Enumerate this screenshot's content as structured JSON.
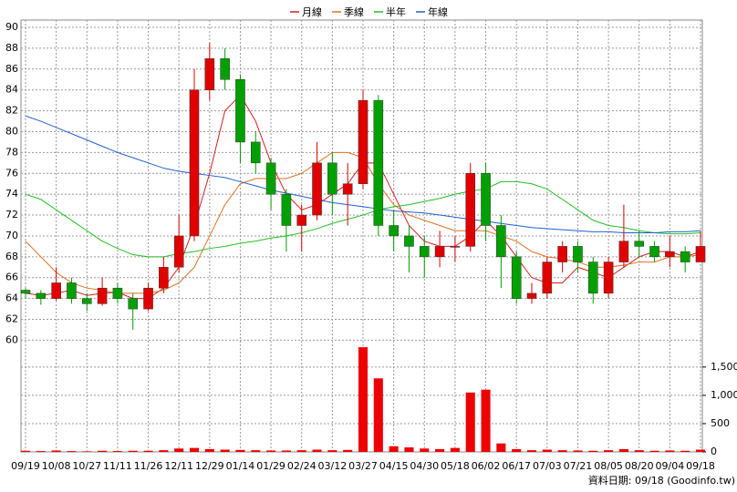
{
  "chart_data": {
    "type": "candlestick",
    "categories": [
      "09/19",
      null,
      "10/08",
      null,
      "10/27",
      null,
      "11/11",
      null,
      "11/26",
      null,
      "12/11",
      null,
      "12/29",
      null,
      "01/14",
      null,
      "01/29",
      null,
      "02/24",
      null,
      "03/12",
      null,
      "03/27",
      null,
      "04/15",
      null,
      "04/30",
      null,
      "05/18",
      null,
      "06/02",
      null,
      "06/17",
      null,
      "07/03",
      null,
      "07/21",
      null,
      "08/05",
      null,
      "08/20",
      null,
      "09/04",
      null,
      "09/18"
    ],
    "open": [
      64.8,
      64.5,
      64,
      65.5,
      64,
      63.5,
      65,
      64,
      63,
      65,
      67,
      70,
      84,
      87,
      85,
      79,
      77,
      74,
      71,
      72,
      77,
      74,
      75,
      83,
      71,
      70,
      69,
      68,
      69,
      69,
      76,
      71,
      68,
      64,
      64.5,
      67.5,
      69,
      67.5,
      64.5,
      67.5,
      69.5,
      69,
      68,
      68.5,
      67.5
    ],
    "high": [
      65,
      64.8,
      67,
      66,
      64.5,
      66,
      65.5,
      64.5,
      65.5,
      68,
      72,
      86,
      88.5,
      88,
      85.5,
      80,
      77.5,
      74.5,
      73,
      79,
      78,
      77,
      84,
      83.5,
      72.5,
      71,
      70,
      70.5,
      70,
      77,
      77,
      72,
      68.5,
      65.5,
      68,
      69.5,
      69.5,
      68,
      68,
      73,
      70.5,
      69.5,
      70,
      69,
      70.5
    ],
    "low": [
      64,
      63.4,
      63.8,
      63.5,
      62.8,
      63.3,
      63.5,
      61,
      62.8,
      64.5,
      66.5,
      69.5,
      83,
      84,
      77,
      76,
      72.5,
      68.5,
      68.5,
      71.5,
      72,
      71,
      74.5,
      70,
      68.5,
      66.5,
      66,
      67,
      67.5,
      68.5,
      69.5,
      65,
      63.5,
      63.5,
      64,
      66.5,
      66.5,
      63.5,
      64,
      67,
      68,
      67.5,
      67,
      66.5,
      67.5
    ],
    "close": [
      64.5,
      64,
      65.5,
      64,
      63.5,
      65,
      64,
      63,
      65,
      67,
      70,
      84,
      87,
      85,
      79,
      77,
      74,
      71,
      72,
      77,
      74,
      75,
      83,
      71,
      70,
      69,
      68,
      69,
      69,
      76,
      71,
      68,
      64,
      64.5,
      67.5,
      69,
      67.5,
      64.5,
      67.5,
      69.5,
      69,
      68,
      68.5,
      67.5,
      69
    ],
    "up_color": "#e00000",
    "down_color": "#00a000",
    "series": [
      {
        "name": "月線",
        "color": "#d42020",
        "values": [
          64.5,
          64.3,
          64.5,
          64.8,
          64.3,
          64.5,
          64.6,
          64,
          64,
          65,
          67,
          71,
          76,
          82,
          83.5,
          81,
          77,
          74,
          72.5,
          73,
          74,
          75,
          77,
          77,
          74,
          71,
          69.5,
          69,
          69,
          70,
          71.5,
          70,
          68,
          66,
          65.5,
          65.5,
          67,
          66.5,
          66,
          67,
          68,
          68.5,
          68.5,
          68,
          68.5
        ]
      },
      {
        "name": "季線",
        "color": "#e07020",
        "values": [
          69.5,
          68,
          66.5,
          65.5,
          65,
          64.8,
          64.5,
          64.5,
          64.5,
          64.8,
          65.5,
          67,
          70,
          73,
          75,
          75.5,
          75.5,
          75.5,
          76,
          77,
          78,
          78,
          77.5,
          75,
          73,
          72,
          71.5,
          71,
          70.5,
          70.5,
          70.5,
          70,
          69.5,
          68.5,
          68,
          67.8,
          67.5,
          67,
          67,
          67.2,
          67.5,
          67.5,
          68,
          68,
          68.2
        ]
      },
      {
        "name": "半年",
        "color": "#20c020",
        "values": [
          74,
          73.5,
          72.5,
          71.5,
          70.5,
          69.5,
          68.8,
          68.2,
          68,
          68,
          68.3,
          68.5,
          68.8,
          69,
          69.3,
          69.5,
          69.8,
          70,
          70.3,
          70.7,
          71.2,
          71.6,
          72,
          72.5,
          72.8,
          73,
          73.3,
          73.6,
          74,
          74.3,
          74.5,
          75.2,
          75.2,
          75,
          74.5,
          73.5,
          72.5,
          71.5,
          71,
          70.8,
          70.5,
          70.3,
          70.2,
          70.2,
          70.3
        ]
      },
      {
        "name": "年線",
        "color": "#2060d0",
        "values": [
          81.5,
          81,
          80.4,
          79.8,
          79.2,
          78.6,
          78,
          77.5,
          77,
          76.5,
          76.2,
          76,
          75.8,
          75.6,
          75.2,
          74.8,
          74.4,
          74.1,
          73.8,
          73.5,
          73.2,
          73,
          72.8,
          72.6,
          72.4,
          72.3,
          72.2,
          72,
          71.8,
          71.6,
          71.4,
          71.2,
          71,
          70.8,
          70.7,
          70.6,
          70.5,
          70.4,
          70.4,
          70.3,
          70.3,
          70.3,
          70.4,
          70.4,
          70.5
        ]
      }
    ],
    "ylim": [
      59.6,
      90.7
    ],
    "yticks": [
      60,
      62,
      64,
      66,
      68,
      70,
      72,
      74,
      76,
      78,
      80,
      82,
      84,
      86,
      88,
      90
    ],
    "volume": {
      "color": "#ee0000",
      "values": [
        20,
        15,
        25,
        15,
        10,
        20,
        15,
        20,
        20,
        30,
        60,
        70,
        50,
        40,
        35,
        30,
        25,
        25,
        30,
        40,
        30,
        35,
        1850,
        1300,
        100,
        80,
        60,
        50,
        70,
        1050,
        1100,
        150,
        50,
        30,
        40,
        30,
        25,
        20,
        30,
        50,
        30,
        20,
        25,
        20,
        40
      ],
      "ylim": [
        0,
        1900
      ],
      "yticks": [
        0,
        500,
        {
          "value": 1000,
          "label": "1,000"
        },
        {
          "value": 1500,
          "label": "1,500"
        }
      ]
    },
    "grid": true,
    "legend": "top",
    "source": "資料日期: 09/18 (Goodinfo.tw)"
  }
}
